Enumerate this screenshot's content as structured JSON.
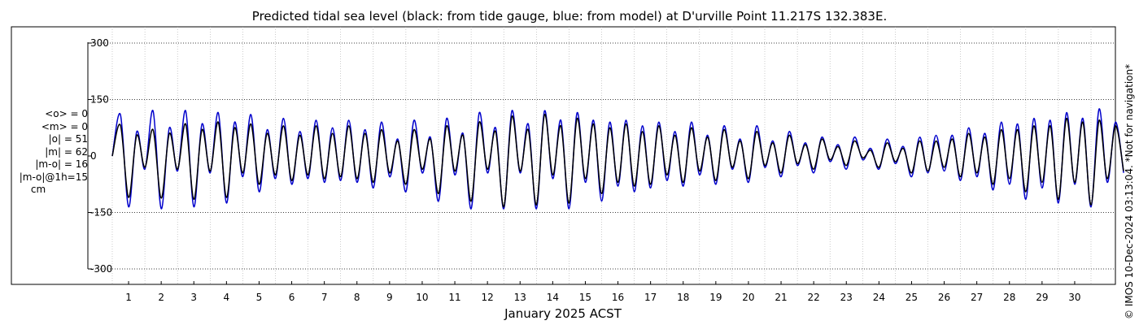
{
  "credit": "© IMOS 10-Dec-2024 03:13:04. *Not for navigation*",
  "stats": {
    "mean_obs": "<o> = 0",
    "mean_model": "<m> = 0",
    "abs_obs": "|o| = 51",
    "abs_model": "|m| = 62",
    "abs_diff": "|m-o| = 16",
    "abs_diff_1h": "|m-o|@1h=15",
    "unit": "cm"
  },
  "chart_data": {
    "type": "line",
    "title": "Predicted tidal sea level (black: from tide gauge, blue: from model) at D'urville Point 11.217S 132.383E.",
    "xlabel": "January 2025 ACST",
    "ylabel": "",
    "xlim": [
      0,
      31
    ],
    "ylim": [
      -320,
      360
    ],
    "yticks": [
      -300,
      -150,
      0,
      150,
      300
    ],
    "ytick_labels": [
      "-300",
      "-150",
      "0",
      "150",
      "300"
    ],
    "xticks": [
      1,
      2,
      3,
      4,
      5,
      6,
      7,
      8,
      9,
      10,
      11,
      12,
      13,
      14,
      15,
      16,
      17,
      18,
      19,
      20,
      21,
      22,
      23,
      24,
      25,
      26,
      27,
      28,
      29,
      30
    ],
    "xtick_labels": [
      "1",
      "2",
      "3",
      "4",
      "5",
      "6",
      "7",
      "8",
      "9",
      "10",
      "11",
      "12",
      "13",
      "14",
      "15",
      "16",
      "17",
      "18",
      "19",
      "20",
      "21",
      "22",
      "23",
      "24",
      "25",
      "26",
      "27",
      "28",
      "29",
      "30"
    ],
    "grid": true,
    "colors": {
      "obs": "#000000",
      "model": "#0000cc",
      "grid": "#aaaaaa"
    },
    "x_units": "days of January 2025",
    "series": [
      {
        "name": "tide gauge",
        "color": "#000000",
        "x": [
          0.0,
          0.25,
          0.5,
          0.75,
          1.0,
          1.25,
          1.5,
          1.75,
          2.0,
          2.25,
          2.5,
          2.75,
          3.0,
          3.25,
          3.5,
          3.75,
          4.0,
          4.25,
          4.5,
          4.75,
          5.0,
          5.25,
          5.5,
          5.75,
          6.0,
          6.25,
          6.5,
          6.75,
          7.0,
          7.25,
          7.5,
          7.75,
          8.0,
          8.25,
          8.5,
          8.75,
          9.0,
          9.25,
          9.5,
          9.75,
          10.0,
          10.25,
          10.5,
          10.75,
          11.0,
          11.25,
          11.5,
          11.75,
          12.0,
          12.25,
          12.5,
          12.75,
          13.0,
          13.25,
          13.5,
          13.75,
          14.0,
          14.25,
          14.5,
          14.75,
          15.0,
          15.25,
          15.5,
          15.75,
          16.0,
          16.25,
          16.5,
          16.75,
          17.0,
          17.25,
          17.5,
          17.75,
          18.0,
          18.25,
          18.5,
          18.75,
          19.0,
          19.25,
          19.5,
          19.75,
          20.0,
          20.25,
          20.5,
          20.75,
          21.0,
          21.25,
          21.5,
          21.75,
          22.0,
          22.25,
          22.5,
          22.75,
          23.0,
          23.25,
          23.5,
          23.75,
          24.0,
          24.25,
          24.5,
          24.75,
          25.0,
          25.25,
          25.5,
          25.75,
          26.0,
          26.25,
          26.5,
          26.75,
          27.0,
          27.25,
          27.5,
          27.75,
          28.0,
          28.25,
          28.5,
          28.75,
          29.0,
          29.25,
          29.5,
          29.75,
          30.0,
          30.25,
          30.5,
          30.75,
          31.0
        ],
        "y": [
          0,
          82,
          -110,
          55,
          -30,
          70,
          -112,
          60,
          -35,
          85,
          -115,
          70,
          -40,
          90,
          -110,
          75,
          -45,
          85,
          -75,
          60,
          -50,
          80,
          -65,
          55,
          -50,
          80,
          -60,
          60,
          -55,
          80,
          -60,
          60,
          -70,
          70,
          -45,
          40,
          -75,
          70,
          -35,
          45,
          -100,
          80,
          -40,
          55,
          -120,
          90,
          -35,
          65,
          -135,
          105,
          -40,
          70,
          -130,
          110,
          -50,
          80,
          -125,
          100,
          -60,
          85,
          -100,
          75,
          -70,
          85,
          -80,
          65,
          -75,
          80,
          -50,
          55,
          -70,
          75,
          -40,
          50,
          -65,
          70,
          -30,
          40,
          -60,
          65,
          -25,
          35,
          -45,
          55,
          -20,
          30,
          -35,
          45,
          -10,
          25,
          -25,
          40,
          -5,
          15,
          -30,
          35,
          -15,
          20,
          -45,
          40,
          -40,
          40,
          -30,
          45,
          -55,
          60,
          -45,
          50,
          -75,
          70,
          -60,
          70,
          -95,
          80,
          -70,
          80,
          -115,
          100,
          -70,
          90,
          -130,
          95,
          -60,
          80,
          -40
        ]
      },
      {
        "name": "model",
        "color": "#0000cc",
        "x": [
          0.0,
          0.25,
          0.5,
          0.75,
          1.0,
          1.25,
          1.5,
          1.75,
          2.0,
          2.25,
          2.5,
          2.75,
          3.0,
          3.25,
          3.5,
          3.75,
          4.0,
          4.25,
          4.5,
          4.75,
          5.0,
          5.25,
          5.5,
          5.75,
          6.0,
          6.25,
          6.5,
          6.75,
          7.0,
          7.25,
          7.5,
          7.75,
          8.0,
          8.25,
          8.5,
          8.75,
          9.0,
          9.25,
          9.5,
          9.75,
          10.0,
          10.25,
          10.5,
          10.75,
          11.0,
          11.25,
          11.5,
          11.75,
          12.0,
          12.25,
          12.5,
          12.75,
          13.0,
          13.25,
          13.5,
          13.75,
          14.0,
          14.25,
          14.5,
          14.75,
          15.0,
          15.25,
          15.5,
          15.75,
          16.0,
          16.25,
          16.5,
          16.75,
          17.0,
          17.25,
          17.5,
          17.75,
          18.0,
          18.25,
          18.5,
          18.75,
          19.0,
          19.25,
          19.5,
          19.75,
          20.0,
          20.25,
          20.5,
          20.75,
          21.0,
          21.25,
          21.5,
          21.75,
          22.0,
          22.25,
          22.5,
          22.75,
          23.0,
          23.25,
          23.5,
          23.75,
          24.0,
          24.25,
          24.5,
          24.75,
          25.0,
          25.25,
          25.5,
          25.75,
          26.0,
          26.25,
          26.5,
          26.75,
          27.0,
          27.25,
          27.5,
          27.75,
          28.0,
          28.25,
          28.5,
          28.75,
          29.0,
          29.25,
          29.5,
          29.75,
          30.0,
          30.25,
          30.5,
          30.75,
          31.0
        ],
        "y": [
          0,
          110,
          -135,
          65,
          -35,
          120,
          -140,
          75,
          -40,
          120,
          -135,
          85,
          -45,
          115,
          -125,
          90,
          -55,
          110,
          -95,
          70,
          -60,
          100,
          -75,
          65,
          -60,
          95,
          -70,
          75,
          -65,
          95,
          -70,
          70,
          -85,
          90,
          -55,
          45,
          -95,
          95,
          -45,
          50,
          -120,
          100,
          -50,
          60,
          -140,
          115,
          -45,
          75,
          -140,
          120,
          -45,
          85,
          -140,
          120,
          -60,
          95,
          -140,
          115,
          -70,
          95,
          -120,
          90,
          -80,
          95,
          -95,
          80,
          -85,
          90,
          -65,
          65,
          -80,
          90,
          -50,
          55,
          -75,
          80,
          -35,
          45,
          -70,
          80,
          -30,
          40,
          -55,
          65,
          -25,
          35,
          -45,
          50,
          -15,
          30,
          -35,
          50,
          -10,
          20,
          -35,
          45,
          -20,
          25,
          -55,
          50,
          -45,
          55,
          -40,
          55,
          -65,
          75,
          -55,
          60,
          -90,
          90,
          -75,
          85,
          -115,
          100,
          -85,
          95,
          -125,
          115,
          -75,
          100,
          -135,
          125,
          -70,
          90,
          -45
        ]
      }
    ]
  }
}
